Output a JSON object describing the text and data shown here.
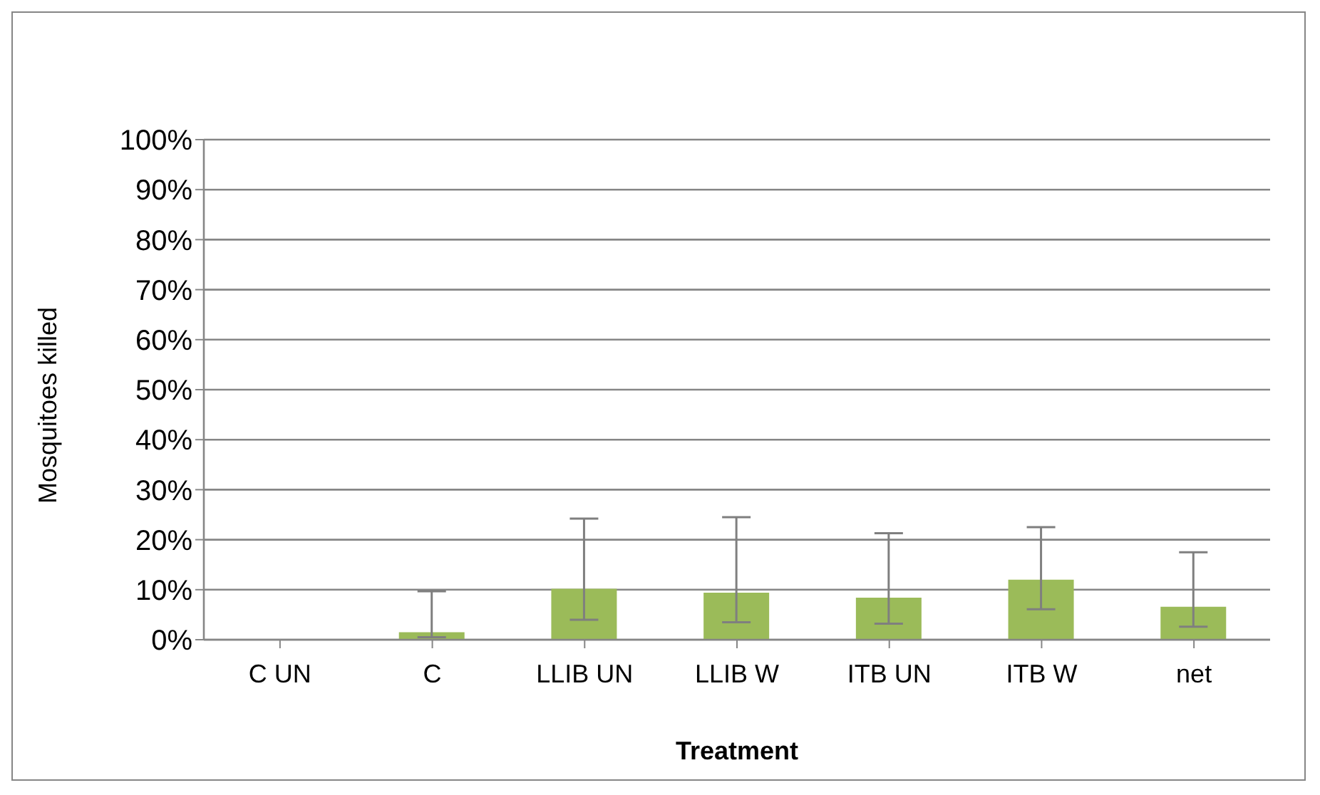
{
  "chart_data": {
    "type": "bar",
    "xlabel": "Treatment",
    "ylabel": "Mosquitoes killed",
    "categories": [
      "C UN",
      "C",
      "LLIB UN",
      "LLIB W",
      "ITB UN",
      "ITB W",
      "net"
    ],
    "values": [
      0,
      1.5,
      10.2,
      9.4,
      8.4,
      12.0,
      6.6
    ],
    "errors": [
      null,
      [
        0.5,
        9.7
      ],
      [
        4.0,
        24.2
      ],
      [
        3.5,
        24.5
      ],
      [
        3.2,
        21.3
      ],
      [
        6.1,
        22.5
      ],
      [
        2.6,
        17.5
      ]
    ],
    "color": "#9bbb59",
    "ylim": [
      0,
      100
    ],
    "yticks": [
      {
        "value": 0,
        "label": "0%"
      },
      {
        "value": 10,
        "label": "10%"
      },
      {
        "value": 20,
        "label": "20%"
      },
      {
        "value": 30,
        "label": "30%"
      },
      {
        "value": 40,
        "label": "40%"
      },
      {
        "value": 50,
        "label": "50%"
      },
      {
        "value": 60,
        "label": "60%"
      },
      {
        "value": 70,
        "label": "70%"
      },
      {
        "value": 80,
        "label": "80%"
      },
      {
        "value": 90,
        "label": "90%"
      },
      {
        "value": 100,
        "label": "100%"
      }
    ],
    "grid": "y",
    "legend": false
  }
}
